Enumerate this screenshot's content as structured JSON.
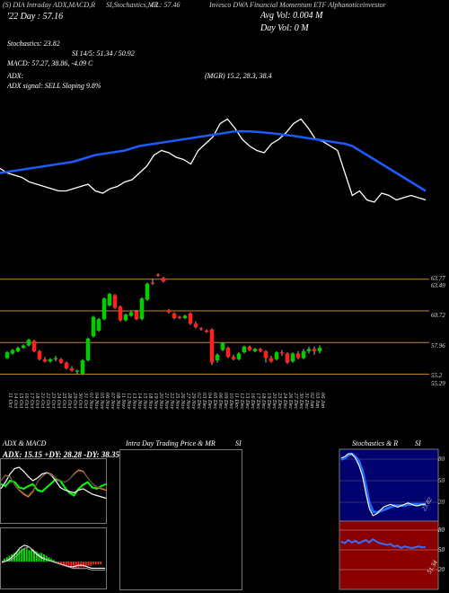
{
  "header": {
    "line1_left": "(S) DIA Intraday ADX,MACD,R",
    "line1_mid": "SI,Stochastics,MR",
    "line1_mid2": "CL: 57.46",
    "line1_right": "Invesco DWA Financial Momentum ETF Alphanoticeinvestor",
    "line2_left": "'22 Day : 57.16",
    "line2_right": "Avg Vol: 0.004  M",
    "line3_right": "Day Vol: 0   M"
  },
  "indicators": {
    "stochastics": "Stochastics: 23.82",
    "rsi": "SI 14/5: 51.34 / 50.92",
    "macd": "MACD: 57.27, 38.86, -4.09 C",
    "adx_label": "ADX:",
    "adx_values": "(MGR) 15.2, 28.3, 38.4",
    "adx_signal": "ADX  signal: SELL  Sloping 9.8%"
  },
  "colors": {
    "up": "#00cc00",
    "down": "#ff2020",
    "ma_line": "#1e5bff",
    "price_line": "#ffffff",
    "hline": "#cc8a2a",
    "rsi_bg": "#8b0000",
    "stoch_bg": "#00006e"
  },
  "chart_data": [
    {
      "type": "candlestick",
      "price_labels": [
        "63.77",
        "63.49",
        "60.72",
        "57.96",
        "55.2",
        "55.29"
      ],
      "hlines": [
        63.49,
        60.72,
        57.96,
        55.2
      ],
      "ylim": [
        54.6,
        65.2
      ],
      "categories": [
        "11 Oct",
        "14 Oct",
        "15 Oct",
        "16 Oct",
        "17 Oct",
        "18 Oct",
        "21 Oct",
        "22 Oct",
        "23 Oct",
        "24 Oct",
        "25 Oct",
        "28 Oct",
        "29 Oct",
        "30 Oct",
        "31 Oct",
        "01 Nov",
        "04 Nov",
        "05 Nov",
        "06 Nov",
        "07 Nov",
        "08 Nov",
        "11 Nov",
        "12 Nov",
        "13 Nov",
        "14 Nov",
        "15 Nov",
        "18 Nov",
        "19 Nov",
        "20 Nov",
        "21 Nov",
        "22 Nov",
        "25 Nov",
        "26 Nov",
        "27 Nov",
        "29 Nov",
        "02 Dec",
        "03 Dec",
        "04 Dec",
        "05 Dec",
        "06 Dec",
        "09 Dec",
        "10 Dec",
        "11 Dec",
        "12 Dec",
        "13 Dec",
        "16 Dec",
        "17 Dec",
        "18 Dec",
        "19 Dec",
        "20 Dec",
        "23 Dec",
        "24 Dec",
        "26 Dec",
        "27 Dec",
        "30 Dec",
        "31 Dec",
        "02 Jan",
        "03 Jan",
        "06 Jan"
      ],
      "candles": [
        {
          "o": 56.6,
          "c": 57.1,
          "h": 57.2,
          "l": 56.5
        },
        {
          "o": 57.0,
          "c": 57.3,
          "h": 57.4,
          "l": 56.9
        },
        {
          "o": 57.2,
          "c": 57.5,
          "h": 57.6,
          "l": 57.1
        },
        {
          "o": 57.5,
          "c": 57.7,
          "h": 57.8,
          "l": 57.4
        },
        {
          "o": 57.7,
          "c": 58.2,
          "h": 58.3,
          "l": 57.6
        },
        {
          "o": 58.1,
          "c": 57.2,
          "h": 58.2,
          "l": 57.1
        },
        {
          "o": 57.2,
          "c": 56.5,
          "h": 57.3,
          "l": 56.4
        },
        {
          "o": 56.5,
          "c": 56.3,
          "h": 56.7,
          "l": 56.2
        },
        {
          "o": 56.3,
          "c": 56.5,
          "h": 56.6,
          "l": 56.2
        },
        {
          "o": 56.5,
          "c": 56.6,
          "h": 56.8,
          "l": 56.3
        },
        {
          "o": 56.5,
          "c": 56.2,
          "h": 56.6,
          "l": 56.1
        },
        {
          "o": 56.2,
          "c": 55.7,
          "h": 56.3,
          "l": 55.6
        },
        {
          "o": 55.7,
          "c": 55.5,
          "h": 55.9,
          "l": 55.4
        },
        {
          "o": 55.4,
          "c": 55.5,
          "h": 55.6,
          "l": 55.2
        },
        {
          "o": 55.2,
          "c": 56.4,
          "h": 56.5,
          "l": 55.1
        },
        {
          "o": 56.4,
          "c": 58.3,
          "h": 58.4,
          "l": 56.3
        },
        {
          "o": 58.5,
          "c": 60.2,
          "h": 60.3,
          "l": 58.4
        },
        {
          "o": 59.0,
          "c": 60.0,
          "h": 60.1,
          "l": 58.9
        },
        {
          "o": 60.0,
          "c": 61.8,
          "h": 61.9,
          "l": 59.9
        },
        {
          "o": 61.2,
          "c": 62.2,
          "h": 62.3,
          "l": 61.1
        },
        {
          "o": 62.1,
          "c": 61.0,
          "h": 62.2,
          "l": 60.9
        },
        {
          "o": 61.1,
          "c": 59.9,
          "h": 61.2,
          "l": 59.8
        },
        {
          "o": 59.9,
          "c": 60.4,
          "h": 60.5,
          "l": 59.8
        },
        {
          "o": 60.3,
          "c": 60.6,
          "h": 60.7,
          "l": 60.2
        },
        {
          "o": 60.7,
          "c": 60.0,
          "h": 60.8,
          "l": 59.9
        },
        {
          "o": 60.0,
          "c": 61.8,
          "h": 61.9,
          "l": 59.9
        },
        {
          "o": 61.7,
          "c": 63.1,
          "h": 63.2,
          "l": 61.6
        },
        {
          "o": 63.2,
          "c": 63.1,
          "h": 63.5,
          "l": 63.0
        },
        {
          "o": 63.9,
          "c": 63.8,
          "h": 64.0,
          "l": 63.7
        },
        {
          "o": 63.6,
          "c": 63.3,
          "h": 63.7,
          "l": 63.2
        },
        {
          "o": 60.8,
          "c": 60.6,
          "h": 60.9,
          "l": 60.5
        },
        {
          "o": 60.5,
          "c": 60.1,
          "h": 60.6,
          "l": 60.0
        },
        {
          "o": 60.2,
          "c": 60.1,
          "h": 60.3,
          "l": 60.0
        },
        {
          "o": 60.1,
          "c": 60.3,
          "h": 60.4,
          "l": 60.0
        },
        {
          "o": 60.5,
          "c": 59.6,
          "h": 60.6,
          "l": 59.5
        },
        {
          "o": 59.6,
          "c": 59.3,
          "h": 59.8,
          "l": 59.2
        },
        {
          "o": 59.2,
          "c": 59.1,
          "h": 59.3,
          "l": 59.0
        },
        {
          "o": 59.0,
          "c": 58.9,
          "h": 59.1,
          "l": 58.8
        },
        {
          "o": 59.1,
          "c": 56.2,
          "h": 59.2,
          "l": 56.0
        },
        {
          "o": 56.4,
          "c": 56.9,
          "h": 57.0,
          "l": 56.2
        },
        {
          "o": 57.3,
          "c": 57.9,
          "h": 58.0,
          "l": 57.2
        },
        {
          "o": 57.5,
          "c": 56.7,
          "h": 57.6,
          "l": 56.6
        },
        {
          "o": 56.7,
          "c": 56.5,
          "h": 56.9,
          "l": 56.4
        },
        {
          "o": 56.5,
          "c": 57.0,
          "h": 57.1,
          "l": 56.4
        },
        {
          "o": 57.1,
          "c": 57.6,
          "h": 57.7,
          "l": 57.0
        },
        {
          "o": 57.6,
          "c": 57.3,
          "h": 57.7,
          "l": 57.2
        },
        {
          "o": 57.2,
          "c": 57.4,
          "h": 57.5,
          "l": 57.1
        },
        {
          "o": 57.4,
          "c": 57.2,
          "h": 57.5,
          "l": 57.1
        },
        {
          "o": 57.2,
          "c": 56.6,
          "h": 57.3,
          "l": 56.2
        },
        {
          "o": 56.6,
          "c": 56.3,
          "h": 56.8,
          "l": 56.2
        },
        {
          "o": 56.5,
          "c": 57.1,
          "h": 57.2,
          "l": 56.4
        },
        {
          "o": 57.1,
          "c": 57.0,
          "h": 57.3,
          "l": 56.8
        },
        {
          "o": 57.0,
          "c": 56.2,
          "h": 57.1,
          "l": 56.1
        },
        {
          "o": 56.3,
          "c": 57.0,
          "h": 57.1,
          "l": 56.2
        },
        {
          "o": 57.0,
          "c": 56.6,
          "h": 57.2,
          "l": 56.5
        },
        {
          "o": 56.6,
          "c": 57.2,
          "h": 57.4,
          "l": 56.5
        },
        {
          "o": 57.2,
          "c": 57.4,
          "h": 57.6,
          "l": 57.0
        },
        {
          "o": 57.4,
          "c": 57.2,
          "h": 57.6,
          "l": 56.9
        },
        {
          "o": 57.2,
          "c": 57.5,
          "h": 57.7,
          "l": 57.0
        }
      ],
      "price_line": [
        72,
        70,
        69,
        68,
        66,
        65,
        64,
        63,
        62,
        62,
        63,
        64,
        65,
        62,
        61,
        63,
        64,
        66,
        67,
        70,
        73,
        78,
        80,
        79,
        77,
        76,
        74,
        80,
        83,
        86,
        92,
        94,
        90,
        85,
        82,
        80,
        79,
        83,
        85,
        88,
        92,
        94,
        90,
        85,
        84,
        82,
        80,
        70,
        60,
        62,
        58,
        57,
        61,
        60,
        58,
        59,
        60,
        59,
        58
      ],
      "ma_line": [
        70,
        70.5,
        71,
        71.5,
        72,
        72.5,
        73,
        73.5,
        74,
        74.5,
        75,
        76,
        77,
        78,
        78.5,
        79,
        79.5,
        80,
        81,
        82,
        82.5,
        83,
        83.5,
        84,
        84.5,
        85,
        85.5,
        86,
        86.5,
        87,
        87.5,
        88,
        88.5,
        88.5,
        88.5,
        88.3,
        88,
        87.7,
        87.3,
        86.9,
        86.5,
        86,
        85.5,
        85,
        84.5,
        84,
        83.5,
        83,
        82,
        80,
        78,
        76,
        74,
        72,
        70,
        68,
        66,
        64,
        62
      ]
    },
    {
      "type": "line",
      "title": "ADX  & MACD",
      "subtitle": "ADX: 15.15  +DY: 28.28  -DY: 38.35",
      "series": [
        {
          "values": [
            55,
            52,
            60,
            58,
            50,
            48,
            52,
            55,
            46,
            44,
            50,
            56,
            62,
            60,
            50,
            42,
            38,
            48,
            54,
            58,
            50,
            48,
            52,
            55
          ]
        },
        {
          "values": [
            60,
            68,
            66,
            54,
            46,
            40,
            36,
            44,
            58,
            66,
            72,
            70,
            64,
            60,
            58,
            62,
            70,
            76,
            74,
            64,
            56,
            50,
            48,
            46
          ]
        },
        {
          "values": [
            48,
            58,
            70,
            78,
            80,
            74,
            66,
            60,
            64,
            70,
            72,
            68,
            60,
            50,
            46,
            44,
            42,
            46,
            48,
            44,
            40,
            38,
            36,
            34
          ]
        }
      ],
      "macd_hist": [
        2,
        3,
        4,
        5,
        6,
        7,
        8,
        9,
        9,
        9,
        8,
        8,
        7,
        7,
        6,
        6,
        5,
        4,
        3,
        2,
        1,
        0,
        -1,
        -2,
        -3,
        -3,
        -4,
        -4,
        -5,
        -5,
        -5,
        -4,
        -4,
        -3,
        -3,
        -3,
        -2,
        -2,
        -2,
        -2
      ],
      "macd_line": [
        30,
        32,
        36,
        42,
        50,
        54,
        52,
        46,
        40,
        36,
        34,
        32,
        30,
        28,
        26,
        24,
        24,
        26,
        26,
        24,
        22,
        22,
        22,
        22
      ],
      "macd_signal": [
        34,
        34,
        36,
        40,
        46,
        52,
        54,
        50,
        44,
        40,
        36,
        34,
        32,
        30,
        28,
        26,
        24,
        24,
        24,
        24,
        22,
        22,
        22,
        22
      ]
    },
    {
      "type": "line",
      "title": "Intra  Day Trading Price  & MR",
      "title_right": "SI",
      "series": []
    },
    {
      "type": "line",
      "title": "Stochastics  & R",
      "title_right": "SI",
      "y_labels_top": [
        "80",
        "50",
        "20",
        "23.82"
      ],
      "y_labels_bottom": [
        "80",
        "50",
        "20",
        "51.34"
      ],
      "series": [
        {
          "values": [
            90,
            92,
            96,
            96,
            90,
            80,
            65,
            40,
            18,
            8,
            10,
            15,
            20,
            22,
            24,
            22,
            20,
            22,
            24,
            26,
            24,
            22,
            22,
            24,
            24
          ]
        },
        {
          "values": [
            88,
            90,
            94,
            96,
            92,
            86,
            72,
            50,
            26,
            14,
            12,
            14,
            16,
            18,
            20,
            22,
            22,
            22,
            22,
            24,
            24,
            24,
            24,
            24,
            24
          ]
        }
      ],
      "rsi": [
        58,
        56,
        60,
        57,
        59,
        56,
        58,
        60,
        57,
        61,
        58,
        56,
        55,
        54,
        55,
        52,
        53,
        50,
        52,
        51,
        50,
        51,
        52,
        51,
        51
      ]
    }
  ]
}
